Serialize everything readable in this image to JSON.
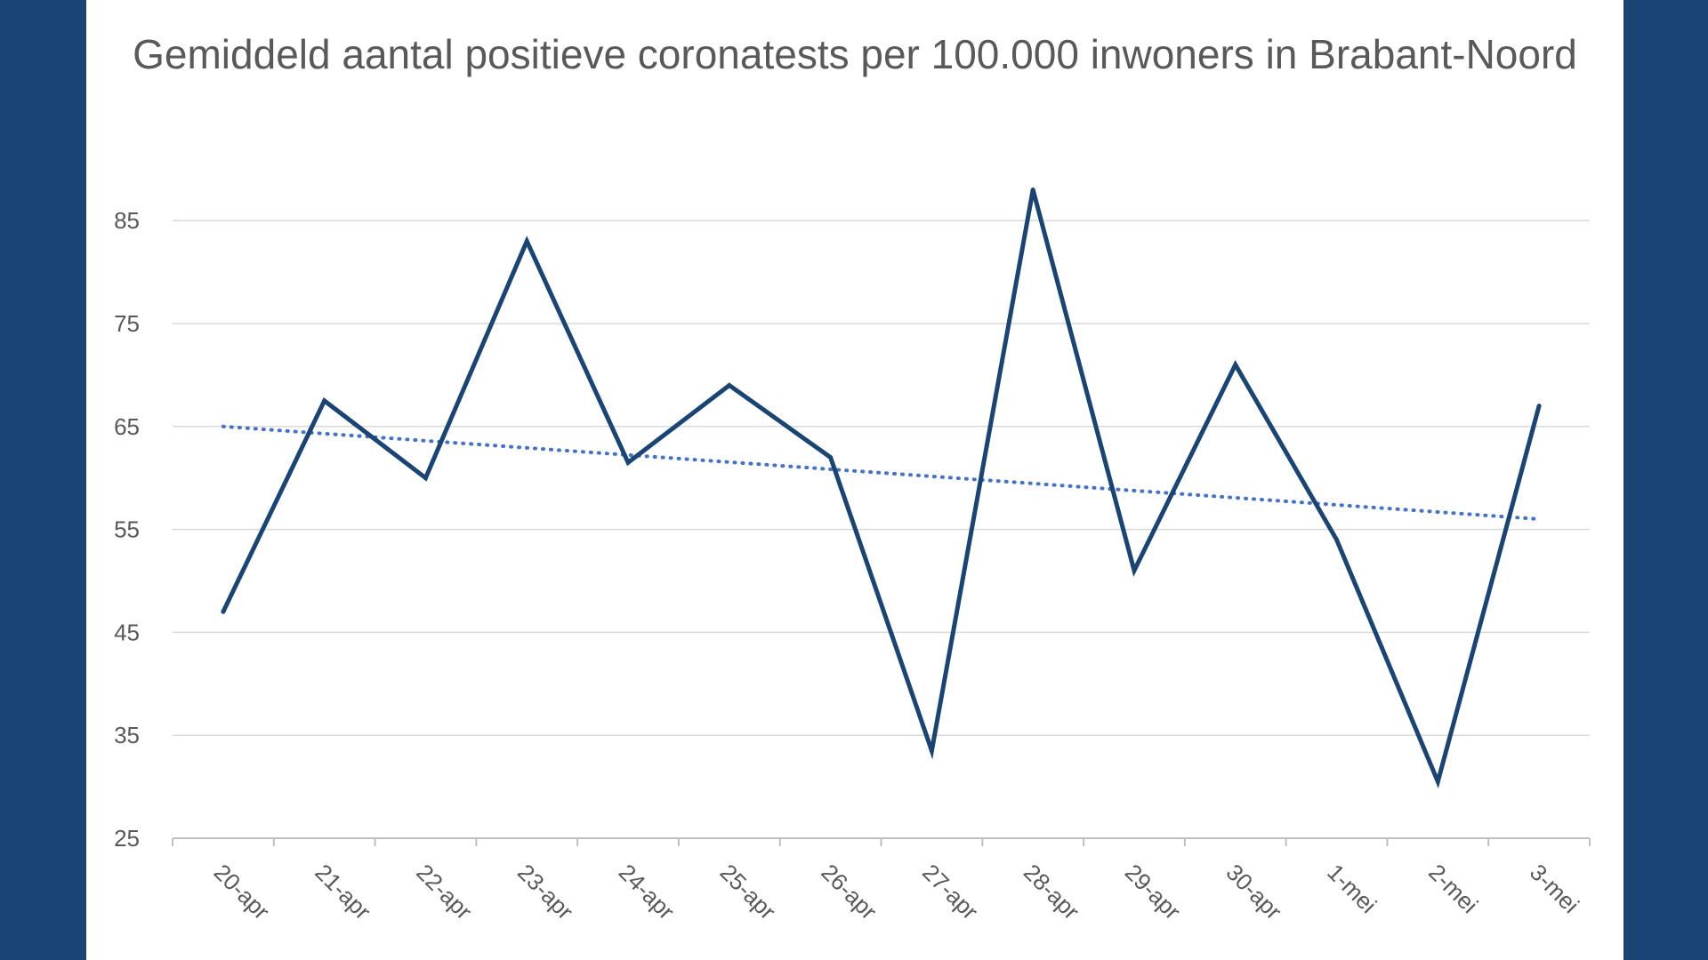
{
  "colors": {
    "background": "#1a4474",
    "line": "#1a4474",
    "trendline": "#4472c4",
    "text": "#595959",
    "grid": "#d9d9d9"
  },
  "chart_data": {
    "type": "line",
    "title": "Gemiddeld aantal positieve coronatests per 100.000 inwoners in Brabant-Noord",
    "xlabel": "",
    "ylabel": "",
    "ylim": [
      25,
      88
    ],
    "grid": true,
    "yticks": [
      25,
      35,
      45,
      55,
      65,
      75,
      85
    ],
    "categories": [
      "20-apr",
      "21-apr",
      "22-apr",
      "23-apr",
      "24-apr",
      "25-apr",
      "26-apr",
      "27-apr",
      "28-apr",
      "29-apr",
      "30-apr",
      "1-mei",
      "2-mei",
      "3-mei"
    ],
    "series": [
      {
        "values": [
          47,
          67.5,
          60,
          83,
          61.5,
          69,
          62,
          33.5,
          88,
          51,
          71,
          54,
          30.5,
          67
        ]
      }
    ],
    "trendline": {
      "type": "linear",
      "style": "dotted",
      "start": 65,
      "end": 56
    }
  }
}
